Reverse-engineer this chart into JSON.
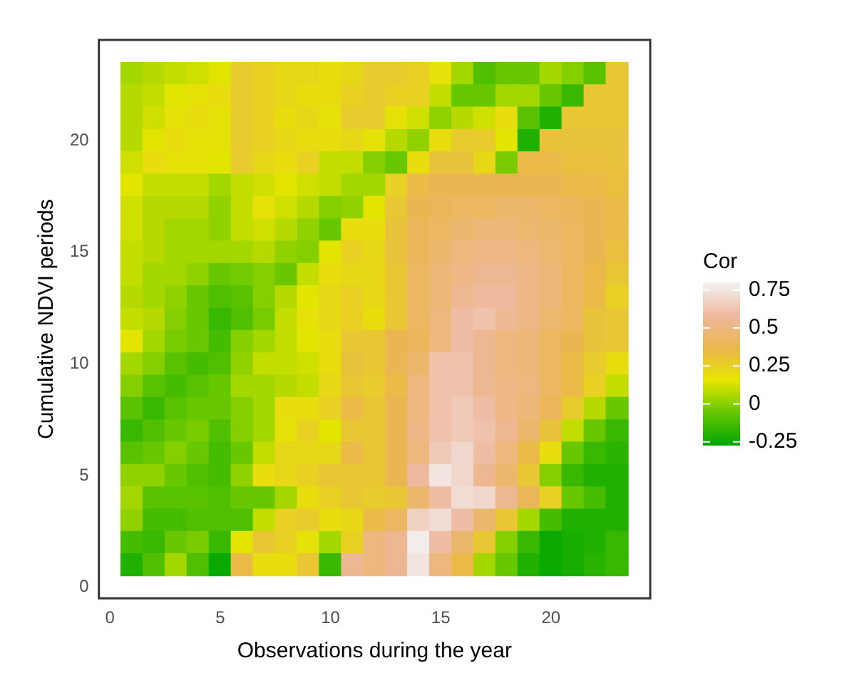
{
  "chart_data": {
    "type": "heatmap",
    "xlabel": "Observations during the year",
    "ylabel": "Cumulative NDVI periods",
    "legend_title": "Cor",
    "x": [
      1,
      2,
      3,
      4,
      5,
      6,
      7,
      8,
      9,
      10,
      11,
      12,
      13,
      14,
      15,
      16,
      17,
      18,
      19,
      20,
      21,
      22,
      23
    ],
    "y": [
      23,
      22,
      21,
      20,
      19,
      18,
      17,
      16,
      15,
      14,
      13,
      12,
      11,
      10,
      9,
      8,
      7,
      6,
      5,
      4,
      3,
      2,
      1
    ],
    "xlim": [
      -0.5,
      24.5
    ],
    "ylim": [
      -0.5,
      24.5
    ],
    "xticks": [
      0,
      5,
      10,
      15,
      20
    ],
    "yticks": [
      0,
      5,
      10,
      15,
      20
    ],
    "clim": [
      -0.27,
      0.8
    ],
    "cticks": [
      -0.25,
      0,
      0.25,
      0.5,
      0.75
    ],
    "colors": [
      "#00a600",
      "#63c600",
      "#e6e600",
      "#eab64e",
      "#eeb99f",
      "#f2f2f2"
    ],
    "cells": [
      [
        0.05,
        0.08,
        0.1,
        0.12,
        0.15,
        0.28,
        0.25,
        0.22,
        0.22,
        0.2,
        0.22,
        0.28,
        0.28,
        0.25,
        0.18,
        0.05,
        -0.1,
        -0.05,
        -0.05,
        0.05,
        0.0,
        -0.08,
        0.3
      ],
      [
        0.08,
        0.1,
        0.15,
        0.18,
        0.2,
        0.28,
        0.25,
        0.22,
        0.2,
        0.2,
        0.25,
        0.28,
        0.25,
        0.25,
        0.1,
        -0.05,
        -0.05,
        0.05,
        0.05,
        -0.05,
        -0.15,
        0.3,
        0.3
      ],
      [
        0.08,
        0.12,
        0.18,
        0.2,
        0.18,
        0.28,
        0.25,
        0.2,
        0.22,
        0.18,
        0.28,
        0.28,
        0.18,
        0.12,
        0.02,
        0.08,
        0.12,
        0.2,
        -0.08,
        -0.2,
        0.3,
        0.3,
        0.3
      ],
      [
        0.08,
        0.15,
        0.2,
        0.18,
        0.18,
        0.28,
        0.25,
        0.22,
        0.2,
        0.2,
        0.22,
        0.18,
        0.08,
        0.02,
        0.2,
        0.28,
        0.28,
        0.15,
        -0.2,
        0.32,
        0.32,
        0.32,
        0.32
      ],
      [
        0.12,
        0.2,
        0.18,
        0.18,
        0.15,
        0.28,
        0.22,
        0.2,
        0.25,
        0.1,
        0.1,
        0.0,
        -0.05,
        0.2,
        0.32,
        0.32,
        0.22,
        -0.02,
        0.35,
        0.35,
        0.33,
        0.33,
        0.32
      ],
      [
        0.15,
        0.1,
        0.1,
        0.1,
        0.05,
        0.1,
        0.12,
        0.15,
        0.12,
        0.1,
        0.05,
        0.05,
        0.25,
        0.35,
        0.38,
        0.38,
        0.38,
        0.38,
        0.38,
        0.38,
        0.36,
        0.35,
        0.33
      ],
      [
        0.12,
        0.08,
        0.08,
        0.08,
        0.02,
        0.1,
        0.18,
        0.12,
        0.08,
        0.0,
        0.02,
        0.15,
        0.3,
        0.38,
        0.4,
        0.42,
        0.42,
        0.44,
        0.44,
        0.42,
        0.4,
        0.38,
        0.35
      ],
      [
        0.12,
        0.08,
        0.05,
        0.05,
        0.02,
        0.1,
        0.12,
        0.08,
        0.02,
        -0.05,
        0.2,
        0.2,
        0.32,
        0.4,
        0.42,
        0.45,
        0.48,
        0.48,
        0.46,
        0.44,
        0.42,
        0.38,
        0.35
      ],
      [
        0.1,
        0.08,
        0.05,
        0.05,
        0.05,
        0.05,
        0.08,
        0.02,
        0.0,
        0.15,
        0.25,
        0.22,
        0.32,
        0.4,
        0.45,
        0.5,
        0.52,
        0.52,
        0.5,
        0.46,
        0.42,
        0.38,
        0.33
      ],
      [
        0.1,
        0.05,
        0.05,
        0.02,
        -0.05,
        -0.03,
        0.0,
        -0.05,
        0.1,
        0.2,
        0.22,
        0.22,
        0.3,
        0.42,
        0.48,
        0.52,
        0.55,
        0.55,
        0.52,
        0.48,
        0.42,
        0.36,
        0.3
      ],
      [
        0.08,
        0.05,
        0.02,
        -0.05,
        -0.1,
        -0.08,
        0.0,
        0.08,
        0.15,
        0.22,
        0.25,
        0.22,
        0.3,
        0.42,
        0.48,
        0.55,
        0.58,
        0.58,
        0.52,
        0.48,
        0.42,
        0.35,
        0.25
      ],
      [
        0.1,
        0.08,
        0.0,
        -0.05,
        -0.15,
        -0.1,
        -0.02,
        0.1,
        0.18,
        0.22,
        0.25,
        0.2,
        0.3,
        0.42,
        0.5,
        0.6,
        0.62,
        0.56,
        0.52,
        0.46,
        0.42,
        0.32,
        0.3
      ],
      [
        0.15,
        0.05,
        -0.02,
        -0.05,
        -0.12,
        0.0,
        0.05,
        0.1,
        0.15,
        0.2,
        0.3,
        0.3,
        0.38,
        0.4,
        0.5,
        0.6,
        0.55,
        0.5,
        0.48,
        0.42,
        0.38,
        0.32,
        0.3
      ],
      [
        0.05,
        0.0,
        -0.08,
        -0.12,
        -0.1,
        0.02,
        0.1,
        0.1,
        0.12,
        0.2,
        0.32,
        0.3,
        0.38,
        0.45,
        0.62,
        0.62,
        0.55,
        0.5,
        0.48,
        0.42,
        0.35,
        0.28,
        0.2
      ],
      [
        0.0,
        -0.08,
        -0.12,
        -0.08,
        -0.05,
        0.05,
        0.05,
        0.08,
        0.1,
        0.22,
        0.3,
        0.28,
        0.35,
        0.5,
        0.62,
        0.62,
        0.55,
        0.52,
        0.5,
        0.42,
        0.35,
        0.25,
        0.1
      ],
      [
        -0.08,
        -0.15,
        -0.08,
        -0.05,
        -0.05,
        0.0,
        0.05,
        0.2,
        0.2,
        0.25,
        0.35,
        0.3,
        0.38,
        0.5,
        0.62,
        0.65,
        0.6,
        0.52,
        0.48,
        0.4,
        0.28,
        0.08,
        -0.05
      ],
      [
        -0.15,
        -0.1,
        -0.05,
        -0.02,
        -0.1,
        0.0,
        0.05,
        0.18,
        0.25,
        0.15,
        0.3,
        0.3,
        0.38,
        0.52,
        0.62,
        0.65,
        0.62,
        0.55,
        0.45,
        0.32,
        0.1,
        -0.05,
        -0.15
      ],
      [
        -0.08,
        -0.05,
        0.0,
        -0.05,
        -0.12,
        -0.05,
        0.1,
        0.22,
        0.22,
        0.22,
        0.35,
        0.3,
        0.38,
        0.5,
        0.65,
        0.7,
        0.6,
        0.5,
        0.35,
        0.2,
        -0.05,
        -0.15,
        -0.18
      ],
      [
        0.02,
        0.02,
        -0.05,
        -0.1,
        -0.12,
        0.02,
        0.2,
        0.22,
        0.25,
        0.3,
        0.3,
        0.3,
        0.38,
        0.58,
        0.75,
        0.7,
        0.55,
        0.45,
        0.3,
        0.0,
        -0.15,
        -0.2,
        -0.2
      ],
      [
        0.05,
        -0.08,
        -0.08,
        -0.08,
        -0.1,
        -0.05,
        -0.05,
        0.05,
        0.2,
        0.25,
        0.3,
        0.28,
        0.3,
        0.45,
        0.6,
        0.72,
        0.7,
        0.55,
        0.4,
        0.25,
        -0.05,
        -0.12,
        -0.2
      ],
      [
        0.02,
        -0.12,
        -0.12,
        -0.1,
        -0.1,
        -0.1,
        0.1,
        0.25,
        0.28,
        0.2,
        0.22,
        0.35,
        0.42,
        0.68,
        0.72,
        0.6,
        0.45,
        0.3,
        0.05,
        -0.12,
        -0.2,
        -0.2,
        -0.2
      ],
      [
        -0.12,
        -0.15,
        -0.05,
        -0.02,
        -0.15,
        0.15,
        0.3,
        0.25,
        0.18,
        0.05,
        0.25,
        0.5,
        0.55,
        0.78,
        0.6,
        0.45,
        0.3,
        0.0,
        -0.15,
        -0.25,
        -0.22,
        -0.2,
        -0.15
      ],
      [
        -0.2,
        -0.1,
        0.05,
        -0.1,
        -0.25,
        0.35,
        0.2,
        0.2,
        0.3,
        -0.15,
        0.55,
        0.5,
        0.55,
        0.75,
        0.5,
        0.35,
        0.05,
        -0.05,
        -0.2,
        -0.25,
        -0.22,
        -0.18,
        -0.15
      ]
    ]
  }
}
